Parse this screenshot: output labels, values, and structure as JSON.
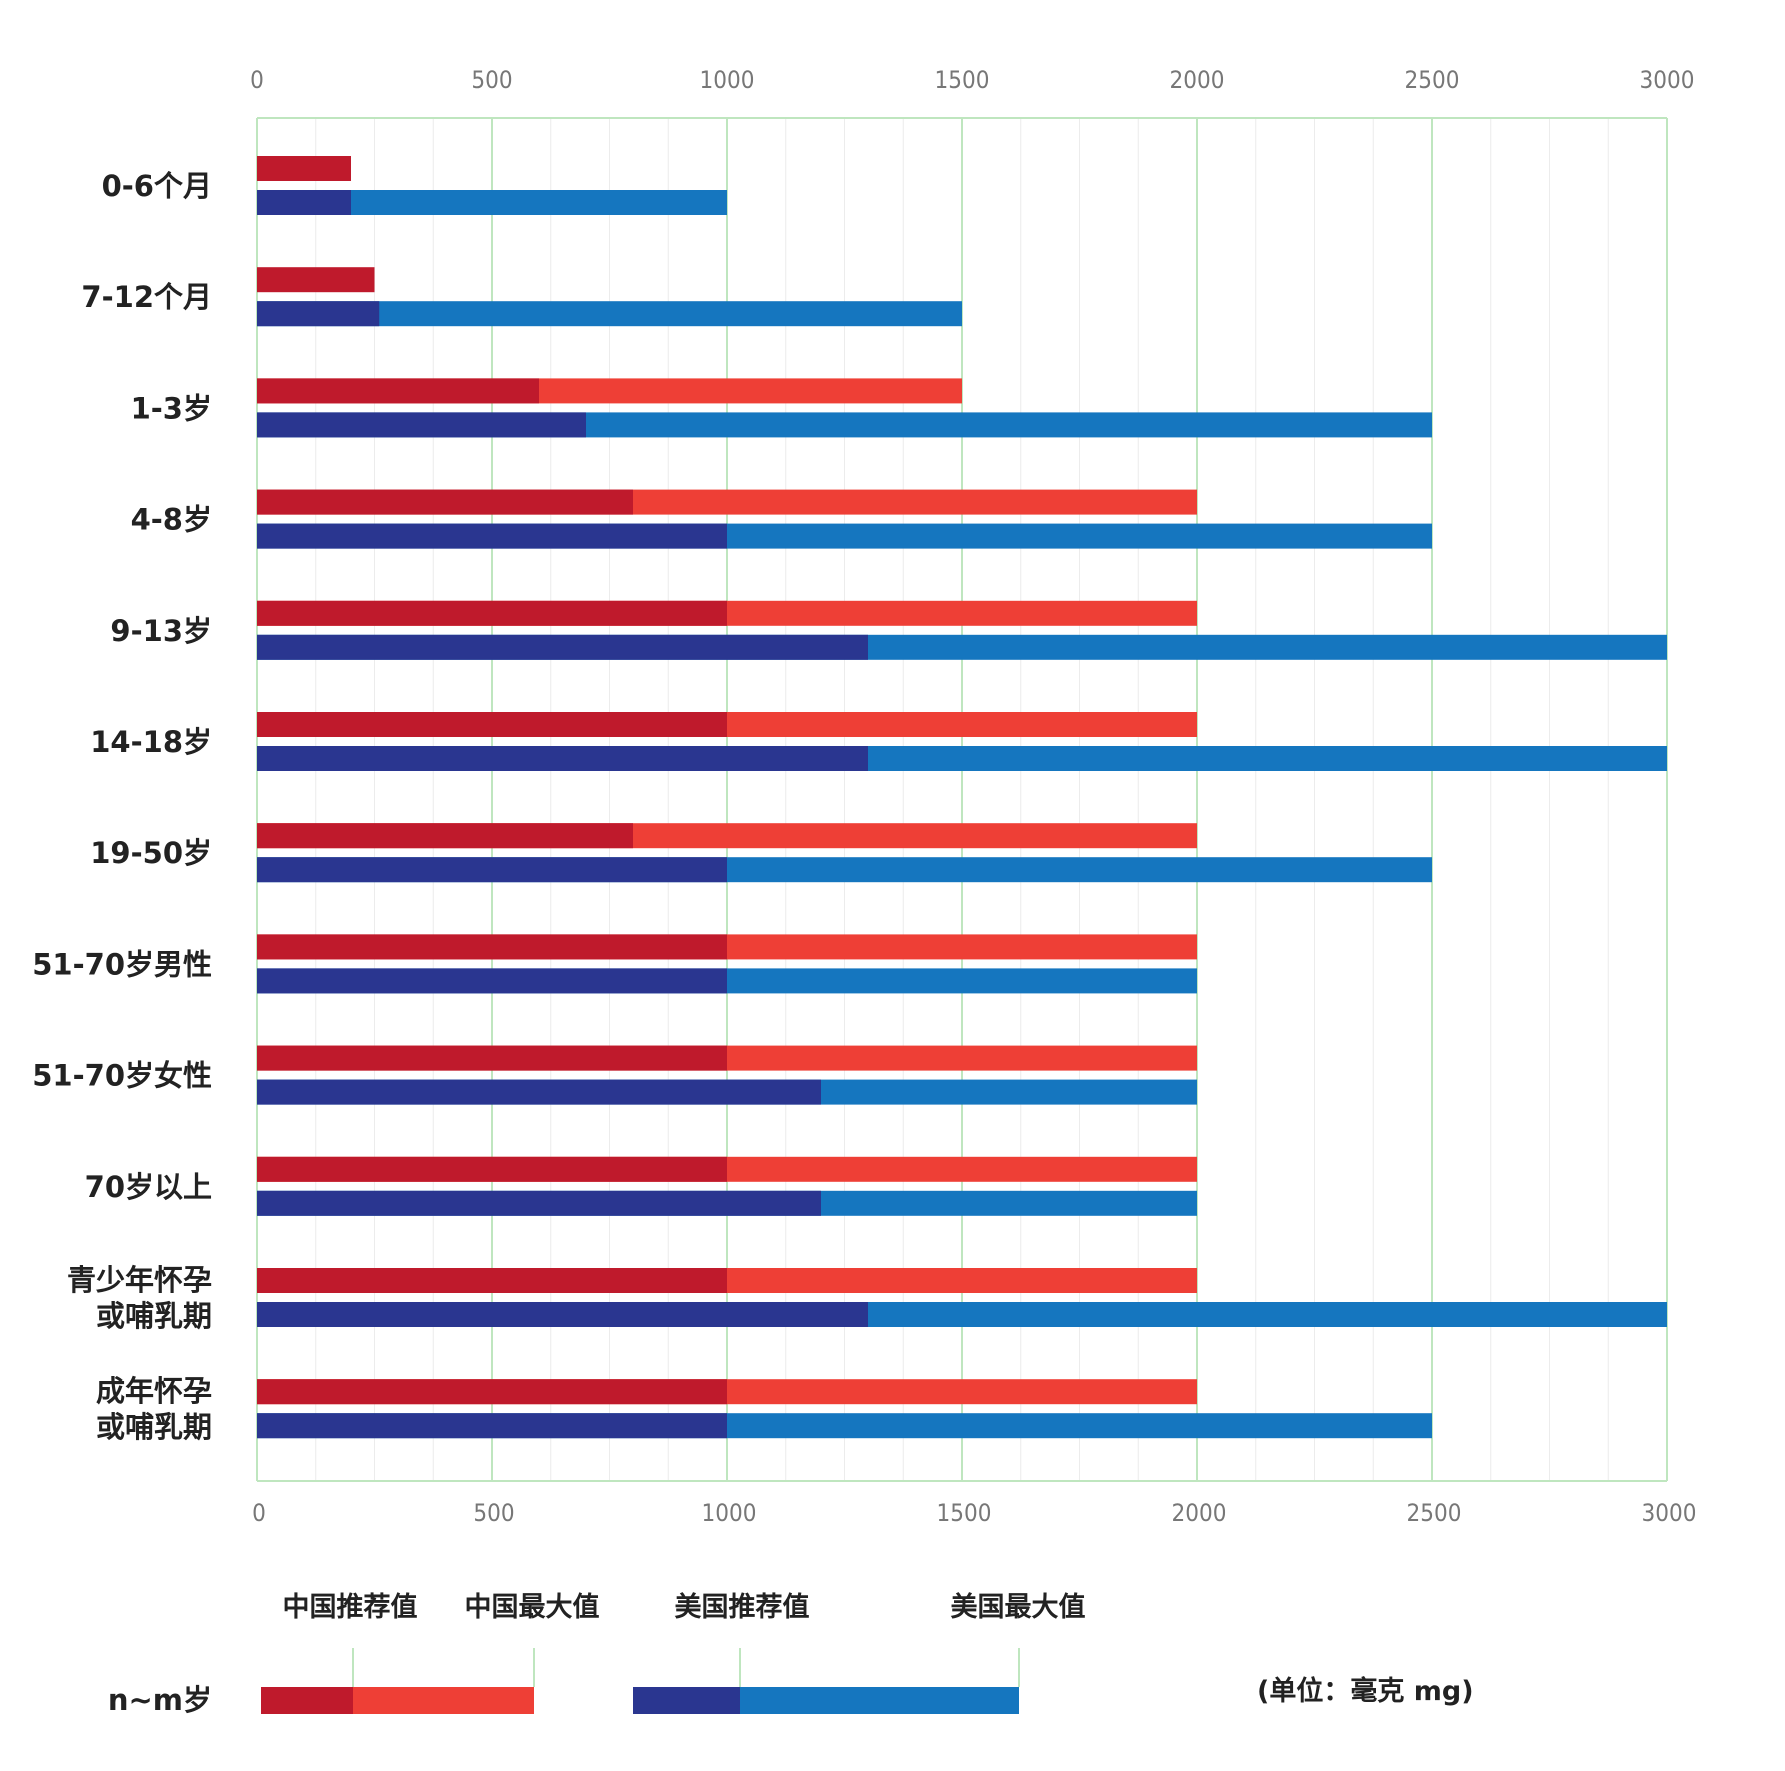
{
  "chart_data": {
    "type": "bar",
    "orientation": "horizontal",
    "xlim": [
      0,
      3000
    ],
    "x_ticks": [
      "0",
      "500",
      "1000",
      "1500",
      "2000",
      "2500",
      "3000"
    ],
    "grid": true,
    "categories": [
      "0-6个月",
      "7-12个月",
      "1-3岁",
      "4-8岁",
      "9-13岁",
      "14-18岁",
      "19-50岁",
      "51-70岁男性",
      "51-70岁女性",
      "70岁以上",
      "青少年怀孕\n或哺乳期",
      "成年怀孕\n或哺乳期"
    ],
    "series": [
      {
        "name": "中国推荐值",
        "color": "#bf1a2c",
        "values": [
          200,
          250,
          600,
          800,
          1000,
          1000,
          800,
          1000,
          1000,
          1000,
          1000,
          1000
        ]
      },
      {
        "name": "中国最大值",
        "color": "#ee3f36",
        "values": [
          null,
          null,
          1500,
          2000,
          2000,
          2000,
          2000,
          2000,
          2000,
          2000,
          2000,
          2000
        ]
      },
      {
        "name": "美国推荐值",
        "color": "#2a3690",
        "values": [
          200,
          260,
          700,
          1000,
          1300,
          1300,
          1000,
          1000,
          1200,
          1200,
          1300,
          1000
        ]
      },
      {
        "name": "美国最大值",
        "color": "#1576bf",
        "values": [
          1000,
          1500,
          2500,
          2500,
          3000,
          3000,
          2500,
          2000,
          2000,
          2000,
          3000,
          2500
        ]
      }
    ],
    "legend": {
      "position": "bottom",
      "sample_label": "n~m岁",
      "unit": "(单位：毫克 mg)"
    }
  }
}
